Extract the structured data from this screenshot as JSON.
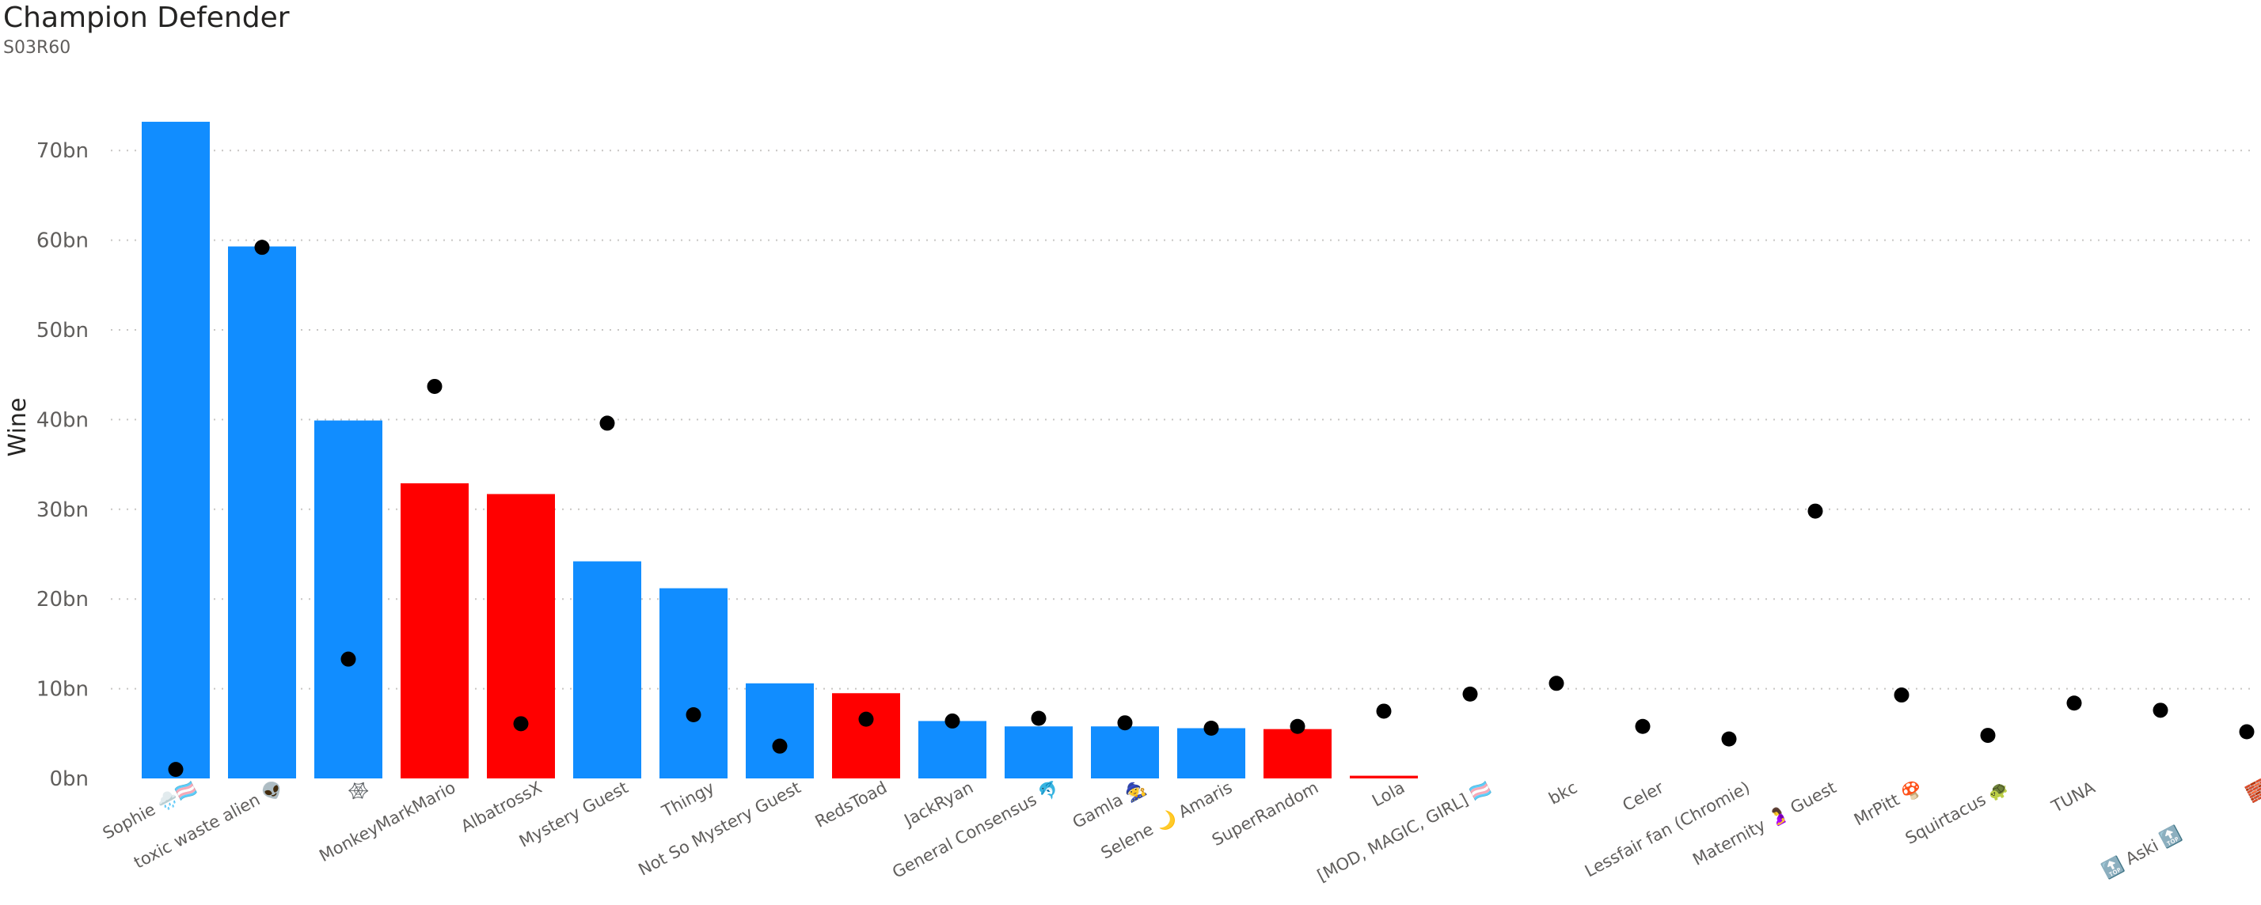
{
  "chart_data": {
    "type": "bar",
    "title": "Champion Defender",
    "subtitle": "S03R60",
    "ylabel": "Wine",
    "xlabel": "",
    "ylim": [
      0,
      75
    ],
    "yticks": [
      0,
      10,
      20,
      30,
      40,
      50,
      60,
      70
    ],
    "tick_suffix": "bn",
    "grid": true,
    "legend": "none",
    "colors": {
      "blue": "#118DFF",
      "red": "#FF0000",
      "dot": "#000000"
    },
    "categories": [
      "Sophie 🌧️🏳️‍⚧️",
      "toxic waste alien 👽",
      "🕸️",
      "MonkeyMarkMario",
      "AlbatrossX",
      "Mystery Guest",
      "Thingy",
      "Not So Mystery Guest",
      "RedsToad",
      "JackRyan",
      "General Consensus 🐬",
      "Gamla 🧙",
      "Selene 🌙 Amaris",
      "SuperRandom",
      "Lola",
      "[MOD, MAGIC, GIRL] 🏳️‍⚧️",
      "bkc",
      "Celer",
      "Lessfair fan (Chromie)",
      "Maternity 🤰 Guest",
      "MrPitt 🍄",
      "Squirtacus 🐢",
      "TUNA",
      "🔝 Aski 🔝",
      "🧱"
    ],
    "series": [
      {
        "kind": "bar",
        "values": [
          73.2,
          59.3,
          39.9,
          32.9,
          31.7,
          24.2,
          21.2,
          10.6,
          9.5,
          6.4,
          5.8,
          5.8,
          5.6,
          5.5,
          0.3,
          0,
          0,
          0,
          0,
          0,
          0,
          0,
          0,
          0,
          0
        ],
        "colors": [
          "blue",
          "blue",
          "blue",
          "red",
          "red",
          "blue",
          "blue",
          "blue",
          "red",
          "blue",
          "blue",
          "blue",
          "blue",
          "red",
          "red",
          "blue",
          "blue",
          "blue",
          "blue",
          "blue",
          "blue",
          "blue",
          "blue",
          "blue",
          "blue"
        ]
      },
      {
        "kind": "dot",
        "values": [
          1.0,
          59.2,
          13.3,
          43.7,
          6.1,
          39.6,
          7.1,
          3.6,
          6.6,
          6.4,
          6.7,
          6.2,
          5.6,
          5.8,
          7.5,
          9.4,
          10.6,
          5.8,
          4.4,
          29.8,
          9.3,
          4.8,
          8.4,
          7.6,
          5.2
        ]
      }
    ]
  }
}
